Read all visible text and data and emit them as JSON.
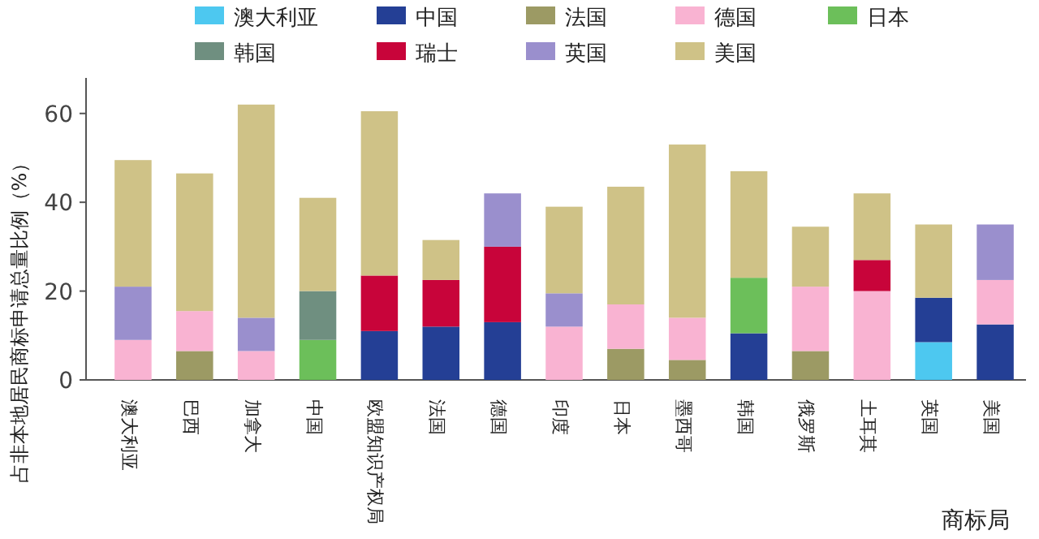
{
  "chart_data": {
    "type": "bar",
    "stacked": true,
    "ylabel": "占非本地居民商标申请总量比例（%）",
    "xlabel": "商标局",
    "legend": "top",
    "categories": [
      "澳大利亚",
      "巴西",
      "加拿大",
      "中国",
      "欧盟知识产权局",
      "法国",
      "德国",
      "印度",
      "日本",
      "墨西哥",
      "韩国",
      "俄罗斯",
      "土耳其",
      "英国",
      "美国"
    ],
    "ylim": [
      0,
      68
    ],
    "yticks": [
      0,
      20,
      40,
      60
    ],
    "series": [
      {
        "name": "澳大利亚",
        "color": "#4dc8f0",
        "values": [
          null,
          null,
          null,
          null,
          null,
          null,
          null,
          null,
          null,
          null,
          null,
          null,
          null,
          8.5,
          null
        ]
      },
      {
        "name": "中国",
        "color": "#243f95",
        "values": [
          null,
          null,
          null,
          null,
          11,
          12,
          13,
          null,
          null,
          null,
          10.5,
          null,
          null,
          10,
          12.5
        ]
      },
      {
        "name": "法国",
        "color": "#9c9a64",
        "values": [
          null,
          6.5,
          null,
          null,
          null,
          null,
          null,
          null,
          7,
          4.5,
          null,
          6.5,
          null,
          null,
          null
        ]
      },
      {
        "name": "德国",
        "color": "#f9b3d2",
        "values": [
          9,
          9,
          6.5,
          null,
          null,
          null,
          null,
          12,
          10,
          9.5,
          null,
          14.5,
          20,
          null,
          10
        ]
      },
      {
        "name": "日本",
        "color": "#6cbf5a",
        "values": [
          null,
          null,
          null,
          9,
          null,
          null,
          null,
          null,
          null,
          null,
          12.5,
          null,
          null,
          null,
          null
        ]
      },
      {
        "name": "韩国",
        "color": "#6f8f80",
        "values": [
          null,
          null,
          null,
          11,
          null,
          null,
          null,
          null,
          null,
          null,
          null,
          null,
          null,
          null,
          null
        ]
      },
      {
        "name": "瑞士",
        "color": "#c8043a",
        "values": [
          null,
          null,
          null,
          null,
          12.5,
          10.5,
          17,
          null,
          null,
          null,
          null,
          null,
          7,
          null,
          null
        ]
      },
      {
        "name": "英国",
        "color": "#9a8fcd",
        "values": [
          12,
          null,
          7.5,
          null,
          null,
          null,
          12,
          7.5,
          null,
          null,
          null,
          null,
          null,
          null,
          12.5
        ]
      },
      {
        "name": "美国",
        "color": "#cfc287",
        "values": [
          28.5,
          31,
          48,
          21,
          37,
          9,
          null,
          19.5,
          26.5,
          39,
          24,
          13.5,
          15,
          16.5,
          null
        ]
      }
    ]
  }
}
